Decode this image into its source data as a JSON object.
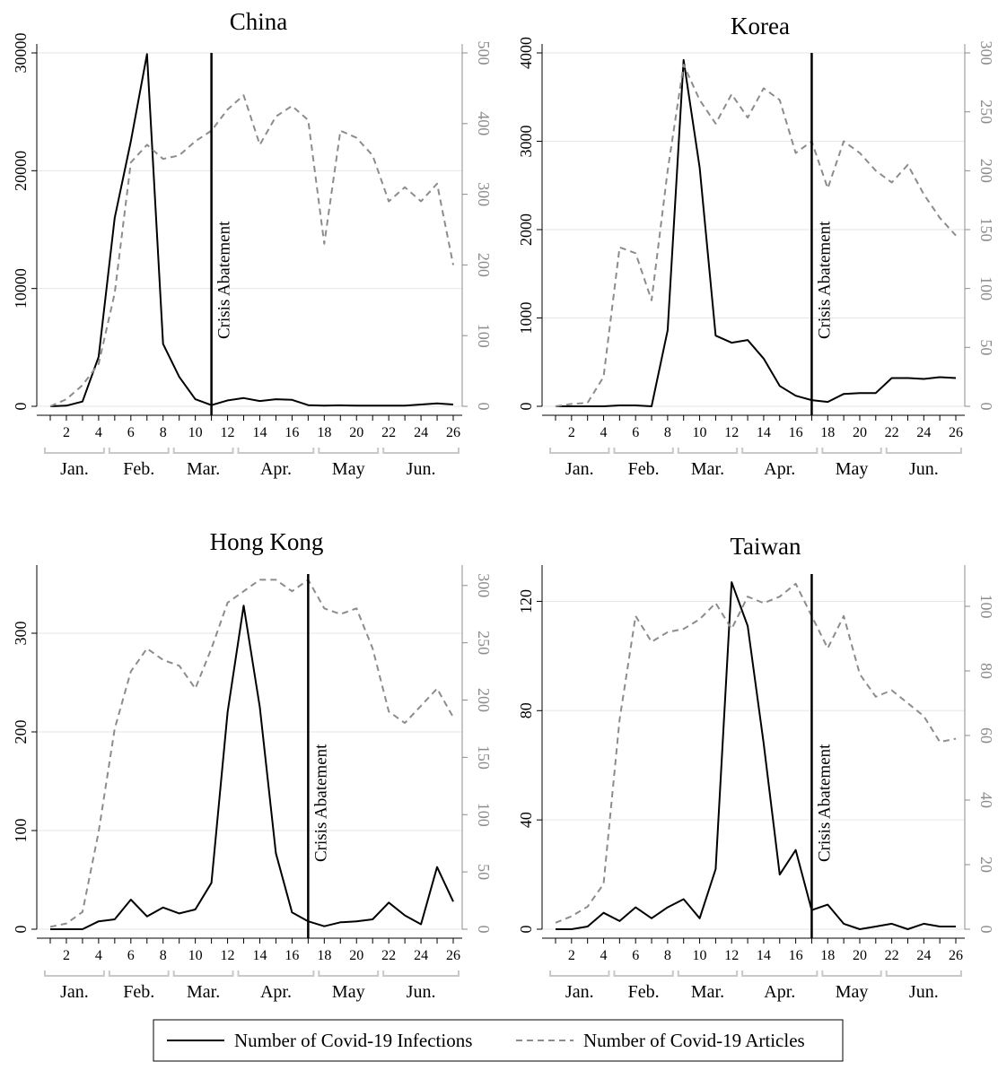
{
  "chart_data": [
    {
      "type": "line",
      "title": "China",
      "x": [
        1,
        2,
        3,
        4,
        5,
        6,
        7,
        8,
        9,
        10,
        11,
        12,
        13,
        14,
        15,
        16,
        17,
        18,
        19,
        20,
        21,
        22,
        23,
        24,
        25,
        26
      ],
      "x_ticks": [
        2,
        4,
        6,
        8,
        10,
        12,
        14,
        16,
        18,
        20,
        22,
        24,
        26
      ],
      "months": [
        {
          "label": "Jan.",
          "start": 1,
          "end": 4
        },
        {
          "label": "Feb.",
          "start": 5,
          "end": 8
        },
        {
          "label": "Mar.",
          "start": 9,
          "end": 12
        },
        {
          "label": "Apr.",
          "start": 13,
          "end": 17
        },
        {
          "label": "May",
          "start": 18,
          "end": 21
        },
        {
          "label": "Jun.",
          "start": 22,
          "end": 26
        }
      ],
      "ylim_left": [
        0,
        30000
      ],
      "yticks_left": [
        0,
        10000,
        20000,
        30000
      ],
      "ylim_right": [
        0,
        500
      ],
      "yticks_right": [
        0,
        100,
        200,
        300,
        400,
        500
      ],
      "series": [
        {
          "axis": "left",
          "values": [
            0,
            50,
            400,
            4200,
            16000,
            22500,
            29900,
            5300,
            2500,
            600,
            100,
            500,
            700,
            450,
            600,
            550,
            100,
            50,
            80,
            50,
            50,
            60,
            50,
            150,
            250,
            150
          ]
        },
        {
          "axis": "right",
          "values": [
            0,
            10,
            30,
            60,
            160,
            345,
            370,
            350,
            355,
            375,
            390,
            420,
            440,
            370,
            410,
            425,
            405,
            230,
            390,
            380,
            355,
            290,
            310,
            290,
            315,
            200
          ]
        }
      ],
      "vline": {
        "x": 11,
        "label": "Crisis Abatement"
      }
    },
    {
      "type": "line",
      "title": "Korea",
      "x": [
        1,
        2,
        3,
        4,
        5,
        6,
        7,
        8,
        9,
        10,
        11,
        12,
        13,
        14,
        15,
        16,
        17,
        18,
        19,
        20,
        21,
        22,
        23,
        24,
        25,
        26
      ],
      "x_ticks": [
        2,
        4,
        6,
        8,
        10,
        12,
        14,
        16,
        18,
        20,
        22,
        24,
        26
      ],
      "months": [
        {
          "label": "Jan.",
          "start": 1,
          "end": 4
        },
        {
          "label": "Feb.",
          "start": 5,
          "end": 8
        },
        {
          "label": "Mar.",
          "start": 9,
          "end": 12
        },
        {
          "label": "Apr.",
          "start": 13,
          "end": 17
        },
        {
          "label": "May",
          "start": 18,
          "end": 21
        },
        {
          "label": "Jun.",
          "start": 22,
          "end": 26
        }
      ],
      "ylim_left": [
        0,
        4000
      ],
      "yticks_left": [
        0,
        1000,
        2000,
        3000,
        4000
      ],
      "ylim_right": [
        0,
        300
      ],
      "yticks_right": [
        0,
        50,
        100,
        150,
        200,
        250,
        300
      ],
      "series": [
        {
          "axis": "left",
          "values": [
            0,
            0,
            0,
            0,
            10,
            10,
            0,
            860,
            3920,
            2700,
            800,
            720,
            750,
            540,
            230,
            120,
            70,
            50,
            140,
            150,
            150,
            320,
            320,
            310,
            330,
            320
          ]
        },
        {
          "axis": "right",
          "values": [
            0,
            2,
            3,
            25,
            135,
            130,
            90,
            200,
            290,
            260,
            240,
            265,
            245,
            270,
            260,
            215,
            225,
            185,
            225,
            215,
            200,
            190,
            205,
            180,
            160,
            145
          ]
        }
      ],
      "vline": {
        "x": 17,
        "label": "Crisis Abatement"
      }
    },
    {
      "type": "line",
      "title": "Hong Kong",
      "x": [
        1,
        2,
        3,
        4,
        5,
        6,
        7,
        8,
        9,
        10,
        11,
        12,
        13,
        14,
        15,
        16,
        17,
        18,
        19,
        20,
        21,
        22,
        23,
        24,
        25,
        26
      ],
      "x_ticks": [
        2,
        4,
        6,
        8,
        10,
        12,
        14,
        16,
        18,
        20,
        22,
        24,
        26
      ],
      "months": [
        {
          "label": "Jan.",
          "start": 1,
          "end": 4
        },
        {
          "label": "Feb.",
          "start": 5,
          "end": 8
        },
        {
          "label": "Mar.",
          "start": 9,
          "end": 12
        },
        {
          "label": "Apr.",
          "start": 13,
          "end": 17
        },
        {
          "label": "May",
          "start": 18,
          "end": 21
        },
        {
          "label": "Jun.",
          "start": 22,
          "end": 26
        }
      ],
      "ylim_left": [
        0,
        360
      ],
      "yticks_left": [
        0,
        100,
        200,
        300
      ],
      "ylim_right": [
        0,
        310
      ],
      "yticks_right": [
        0,
        50,
        100,
        150,
        200,
        250,
        300
      ],
      "series": [
        {
          "axis": "left",
          "values": [
            0,
            0,
            0,
            8,
            10,
            30,
            13,
            22,
            16,
            20,
            47,
            220,
            328,
            225,
            77,
            17,
            8,
            3,
            7,
            8,
            10,
            27,
            14,
            5,
            63,
            28
          ]
        },
        {
          "axis": "right",
          "values": [
            2,
            5,
            15,
            85,
            175,
            225,
            245,
            235,
            230,
            210,
            245,
            285,
            295,
            305,
            305,
            295,
            305,
            280,
            275,
            280,
            245,
            190,
            180,
            195,
            210,
            185
          ]
        }
      ],
      "vline": {
        "x": 17,
        "label": "Crisis Abatement"
      }
    },
    {
      "type": "line",
      "title": "Taiwan",
      "x": [
        1,
        2,
        3,
        4,
        5,
        6,
        7,
        8,
        9,
        10,
        11,
        12,
        13,
        14,
        15,
        16,
        17,
        18,
        19,
        20,
        21,
        22,
        23,
        24,
        25,
        26
      ],
      "x_ticks": [
        2,
        4,
        6,
        8,
        10,
        12,
        14,
        16,
        18,
        20,
        22,
        24,
        26
      ],
      "months": [
        {
          "label": "Jan.",
          "start": 1,
          "end": 4
        },
        {
          "label": "Feb.",
          "start": 5,
          "end": 8
        },
        {
          "label": "Mar.",
          "start": 9,
          "end": 12
        },
        {
          "label": "Apr.",
          "start": 13,
          "end": 17
        },
        {
          "label": "May",
          "start": 18,
          "end": 21
        },
        {
          "label": "Jun.",
          "start": 22,
          "end": 26
        }
      ],
      "ylim_left": [
        0,
        130
      ],
      "yticks_left": [
        0,
        40,
        80,
        120
      ],
      "ylim_right": [
        0,
        110
      ],
      "yticks_right": [
        0,
        20,
        40,
        60,
        80,
        100
      ],
      "series": [
        {
          "axis": "left",
          "values": [
            0,
            0,
            1,
            6,
            3,
            8,
            4,
            8,
            11,
            4,
            22,
            127,
            111,
            68,
            20,
            29,
            7,
            9,
            2,
            0,
            1,
            2,
            0,
            2,
            1,
            1
          ]
        },
        {
          "axis": "right",
          "values": [
            2,
            4,
            7,
            14,
            65,
            97,
            89,
            92,
            93,
            96,
            101,
            93,
            103,
            101,
            103,
            107,
            97,
            87,
            97,
            79,
            72,
            74,
            70,
            66,
            58,
            59
          ]
        }
      ],
      "vline": {
        "x": 17,
        "label": "Crisis Abatement"
      }
    }
  ],
  "legend": {
    "items": [
      {
        "label": "Number of Covid-19 Infections",
        "style": "solid"
      },
      {
        "label": "Number of Covid-19 Articles",
        "style": "dashed"
      }
    ]
  },
  "colors": {
    "infections": "#000000",
    "articles": "#8c8c8c",
    "grid": "#e6e6e6",
    "month_bracket": "#c8c8c8"
  }
}
